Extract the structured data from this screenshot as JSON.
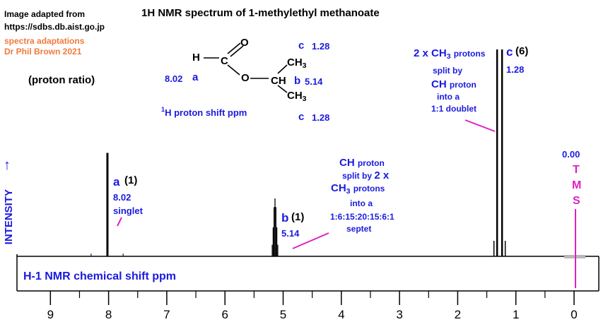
{
  "header": {
    "credit_line1": "Image adapted from",
    "credit_line2": "https://sdbs.db.aist.go.jp",
    "credit_line3": "spectra adaptations",
    "credit_line4": "Dr Phil Brown 2021"
  },
  "chart_data": {
    "type": "line",
    "title": "1H NMR spectrum of 1-methylethyl methanoate",
    "xlabel": "H-1 NMR chemical shift  ppm",
    "ylabel": "INTENSITY",
    "x_reversed": true,
    "xlim": [
      9.7,
      -0.4
    ],
    "x_ticks": [
      "9",
      "8",
      "7",
      "6",
      "5",
      "4",
      "3",
      "2",
      "1",
      "0"
    ],
    "peaks": [
      {
        "ppm": 8.02,
        "label": "a",
        "ratio": "(1)",
        "shift": "8.02",
        "multiplicity": "singlet",
        "relative_height": 0.5
      },
      {
        "ppm": 5.14,
        "label": "b",
        "ratio": "(1)",
        "shift": "5.14",
        "multiplicity": "septet",
        "relative_height": 0.28
      },
      {
        "ppm": 1.28,
        "label": "c",
        "ratio": "(6)",
        "shift": "1.28",
        "multiplicity": "doublet",
        "relative_height": 1.0
      },
      {
        "ppm": 0.0,
        "label": "TMS",
        "shift": "0.00",
        "relative_height": 0
      }
    ]
  },
  "molecule": {
    "atom_H": "H",
    "atom_C": "C",
    "atom_O_double": "O",
    "atom_O_ester": "O",
    "atom_CH": "CH",
    "ch3_top": "CH",
    "ch3_top_sub": "3",
    "ch3_bottom": "CH",
    "ch3_bottom_sub": "3",
    "label_a_shift": "8.02",
    "label_a": "a",
    "label_b": "b",
    "label_b_shift": "5.14",
    "label_c_top": "c",
    "label_c_top_shift": "1.28",
    "label_c_bottom": "c",
    "label_c_bottom_shift": "1.28",
    "proton_ratio": "(proton ratio)",
    "shift_caption_sup": "1",
    "shift_caption": "H  proton shift  ppm"
  },
  "annotations": {
    "a_letter": "a",
    "a_ratio": "(1)",
    "a_shift": "8.02",
    "a_mult": "singlet",
    "b_letter": "b",
    "b_ratio": "(1)",
    "b_shift": "5.14",
    "c_letter": "c",
    "c_ratio": "(6)",
    "c_shift": "1.28",
    "ch_note1": "CH",
    "ch_note1b": "proton",
    "ch_note2": "split by",
    "ch_note2b": "2 x",
    "ch_note3": "CH",
    "ch_note3_sub": "3",
    "ch_note3b": "protons",
    "ch_note4": "into a",
    "ch_note5": "1:6:15:20:15:6:1",
    "ch_note6": "septet",
    "c_note1": "2 x CH",
    "c_note1_sub": "3",
    "c_note1b": "protons",
    "c_note2": "split by",
    "c_note3": "CH",
    "c_note3b": "proton",
    "c_note4": "into a",
    "c_note5": "1:1 doublet",
    "tms_shift": "0.00",
    "tms_T": "T",
    "tms_M": "M",
    "tms_S": "S"
  },
  "colors": {
    "blue": "#1a1ae0",
    "magenta": "#e020c0",
    "orange": "#f07a3a",
    "peak": "#000000"
  }
}
